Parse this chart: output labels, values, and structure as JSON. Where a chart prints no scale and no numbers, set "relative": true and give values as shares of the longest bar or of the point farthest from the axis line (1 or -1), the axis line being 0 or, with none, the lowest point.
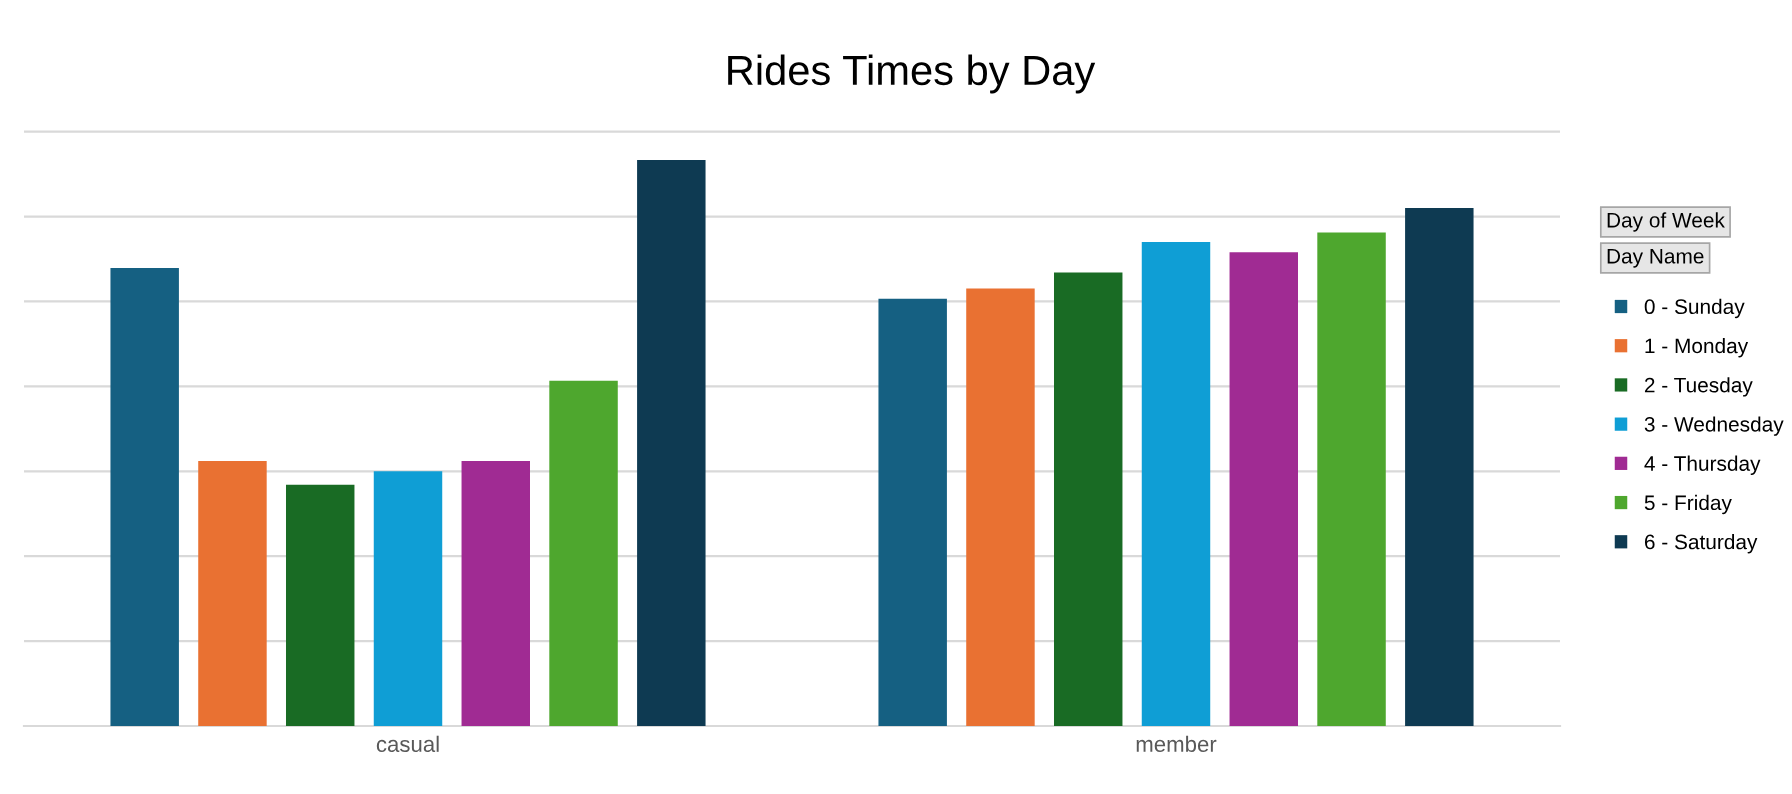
{
  "chart_data": {
    "type": "bar",
    "title": "Rides Times by Day",
    "relative": true,
    "grid": "y",
    "legend": "right",
    "legend_title": "Day Name",
    "annotations": [
      "Day of Week"
    ],
    "categories": [
      "casual",
      "member"
    ],
    "series": [
      {
        "name": "0 - Sunday",
        "color": "#156082",
        "values": [
          0.809,
          0.755
        ]
      },
      {
        "name": "1 - Monday",
        "color": "#e97132",
        "values": [
          0.468,
          0.773
        ]
      },
      {
        "name": "2 - Tuesday",
        "color": "#196b24",
        "values": [
          0.426,
          0.801
        ]
      },
      {
        "name": "3 - Wednesday",
        "color": "#0f9ed5",
        "values": [
          0.45,
          0.855
        ]
      },
      {
        "name": "4 - Thursday",
        "color": "#a02b93",
        "values": [
          0.468,
          0.837
        ]
      },
      {
        "name": "5 - Friday",
        "color": "#4ea72e",
        "values": [
          0.61,
          0.872
        ]
      },
      {
        "name": "6 - Saturday",
        "color": "#0e3a52",
        "values": [
          1,
          0.915
        ]
      }
    ]
  }
}
